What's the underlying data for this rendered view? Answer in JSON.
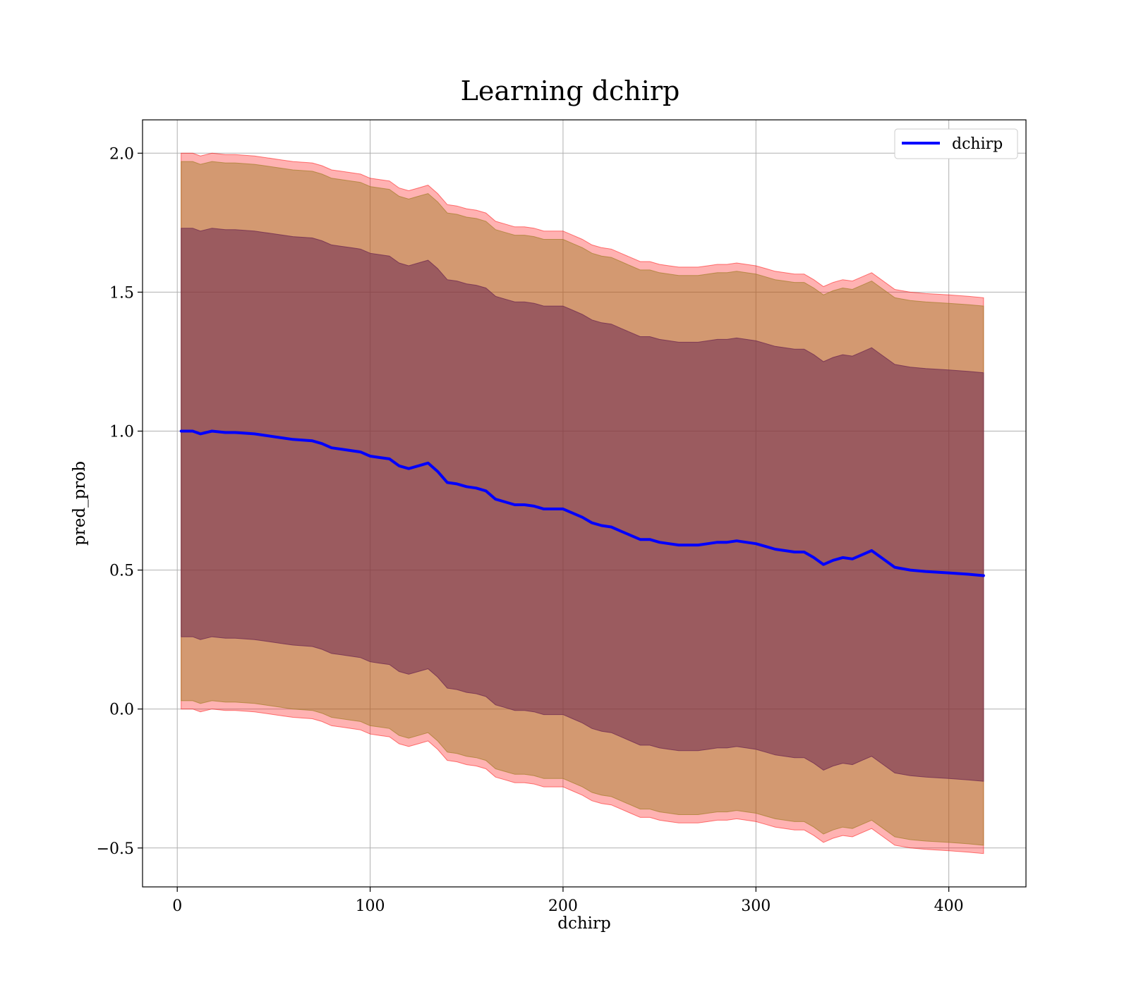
{
  "chart_data": {
    "type": "line",
    "title": "Learning dchirp",
    "xlabel": "dchirp",
    "ylabel": "pred_prob",
    "xlim": [
      -18,
      440
    ],
    "ylim": [
      -0.64,
      2.12
    ],
    "xticks": [
      0,
      100,
      200,
      300,
      400
    ],
    "xtick_labels": [
      "0",
      "100",
      "200",
      "300",
      "400"
    ],
    "yticks": [
      -0.5,
      0.0,
      0.5,
      1.0,
      1.5,
      2.0
    ],
    "ytick_labels": [
      "−0.5",
      "0.0",
      "0.5",
      "1.0",
      "1.5",
      "2.0"
    ],
    "grid": true,
    "legend": {
      "placement": "top-right",
      "entries": [
        "dchirp"
      ]
    },
    "series": [
      {
        "name": "dchirp",
        "color": "#0000ff",
        "x": [
          2,
          8,
          12,
          18,
          25,
          30,
          40,
          45,
          55,
          60,
          70,
          75,
          80,
          85,
          90,
          95,
          100,
          105,
          110,
          115,
          120,
          125,
          130,
          135,
          140,
          145,
          150,
          155,
          160,
          165,
          170,
          175,
          180,
          185,
          190,
          195,
          200,
          205,
          210,
          215,
          220,
          225,
          230,
          235,
          240,
          245,
          250,
          255,
          260,
          265,
          270,
          275,
          280,
          285,
          290,
          295,
          300,
          305,
          310,
          315,
          320,
          325,
          330,
          335,
          340,
          345,
          350,
          355,
          360,
          365,
          372,
          380,
          388,
          400,
          410,
          418
        ],
        "y": [
          1.0,
          1.0,
          0.99,
          1.0,
          0.995,
          0.995,
          0.99,
          0.985,
          0.975,
          0.97,
          0.965,
          0.955,
          0.94,
          0.935,
          0.93,
          0.925,
          0.91,
          0.905,
          0.9,
          0.875,
          0.865,
          0.875,
          0.885,
          0.855,
          0.815,
          0.81,
          0.8,
          0.795,
          0.785,
          0.755,
          0.745,
          0.735,
          0.735,
          0.73,
          0.72,
          0.72,
          0.72,
          0.705,
          0.69,
          0.67,
          0.66,
          0.655,
          0.64,
          0.625,
          0.61,
          0.61,
          0.6,
          0.595,
          0.59,
          0.59,
          0.59,
          0.595,
          0.6,
          0.6,
          0.605,
          0.6,
          0.595,
          0.585,
          0.575,
          0.57,
          0.565,
          0.565,
          0.545,
          0.52,
          0.535,
          0.545,
          0.54,
          0.555,
          0.57,
          0.545,
          0.51,
          0.5,
          0.495,
          0.49,
          0.485,
          0.48
        ]
      }
    ],
    "bands": [
      {
        "color": "#ff0000",
        "opacity": 0.3,
        "width_above": 1.0,
        "width_below": 1.0
      },
      {
        "color": "#9e7b22",
        "opacity": 0.45,
        "width_above": 0.97,
        "width_below": 0.97
      },
      {
        "color": "#6e2850",
        "opacity": 0.55,
        "width_above": 0.73,
        "width_below": 0.74
      }
    ]
  }
}
